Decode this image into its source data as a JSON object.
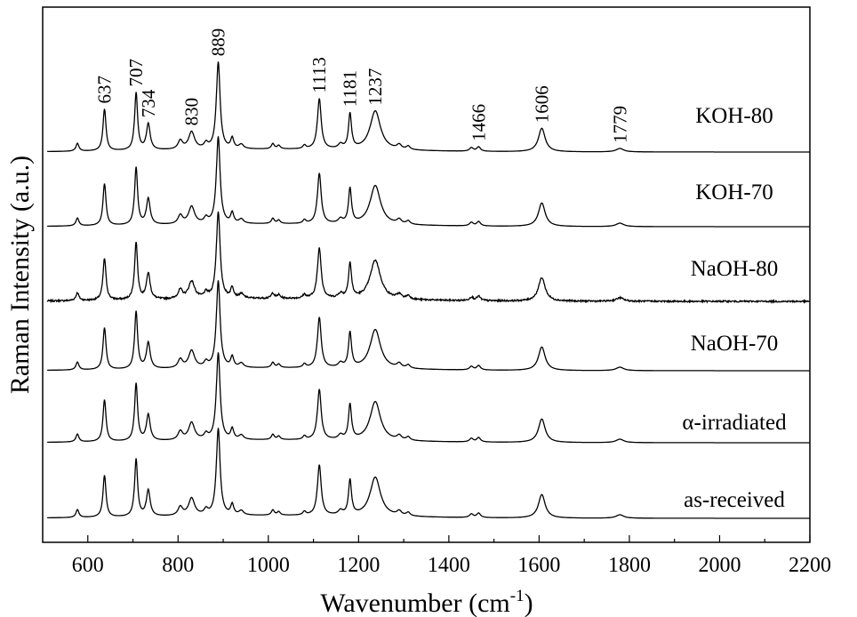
{
  "chart_data": {
    "type": "line",
    "xlabel": "Wavenumber (cm",
    "xlabel_sup": "-1",
    "xlabel_close": ")",
    "ylabel": "Raman Intensity (a.u.)",
    "xlim": [
      500,
      2200
    ],
    "x_ticks": [
      600,
      800,
      1000,
      1200,
      1400,
      1600,
      1800,
      2000,
      2200
    ],
    "x_tick_labels": [
      "600",
      "800",
      "1000",
      "1200",
      "1400",
      "1600",
      "1800",
      "2000",
      "2200"
    ],
    "y_ticks_visible": false,
    "grid": false,
    "peak_labels": [
      {
        "x": 637,
        "label": "637"
      },
      {
        "x": 707,
        "label": "707"
      },
      {
        "x": 734,
        "label": "734"
      },
      {
        "x": 830,
        "label": "830"
      },
      {
        "x": 889,
        "label": "889"
      },
      {
        "x": 1113,
        "label": "1113"
      },
      {
        "x": 1181,
        "label": "1181"
      },
      {
        "x": 1237,
        "label": "1237"
      },
      {
        "x": 1466,
        "label": "1466"
      },
      {
        "x": 1606,
        "label": "1606"
      },
      {
        "x": 1779,
        "label": "1779"
      }
    ],
    "series": [
      {
        "name": "KOH-80",
        "offset": 5,
        "noise": 0
      },
      {
        "name": "KOH-70",
        "offset": 4,
        "noise": 0
      },
      {
        "name": "NaOH-80",
        "offset": 3,
        "noise": 1
      },
      {
        "name": "NaOH-70",
        "offset": 2,
        "noise": 0
      },
      {
        "name": "α-irradiated",
        "offset": 1,
        "noise": 0
      },
      {
        "name": "as-received",
        "offset": 0,
        "noise": 0
      }
    ],
    "peaks": [
      [
        577,
        0.09,
        4
      ],
      [
        637,
        0.48,
        4
      ],
      [
        707,
        0.66,
        4
      ],
      [
        734,
        0.3,
        5
      ],
      [
        805,
        0.1,
        6
      ],
      [
        830,
        0.2,
        8
      ],
      [
        862,
        0.06,
        5
      ],
      [
        889,
        1.0,
        5
      ],
      [
        920,
        0.12,
        4
      ],
      [
        940,
        0.05,
        6
      ],
      [
        1010,
        0.06,
        4
      ],
      [
        1023,
        0.04,
        4
      ],
      [
        1080,
        0.04,
        4
      ],
      [
        1113,
        0.58,
        5
      ],
      [
        1160,
        0.05,
        6
      ],
      [
        1181,
        0.4,
        4
      ],
      [
        1237,
        0.45,
        14
      ],
      [
        1290,
        0.05,
        6
      ],
      [
        1310,
        0.04,
        5
      ],
      [
        1450,
        0.04,
        5
      ],
      [
        1466,
        0.05,
        5
      ],
      [
        1606,
        0.27,
        9
      ],
      [
        1779,
        0.04,
        10
      ]
    ]
  }
}
